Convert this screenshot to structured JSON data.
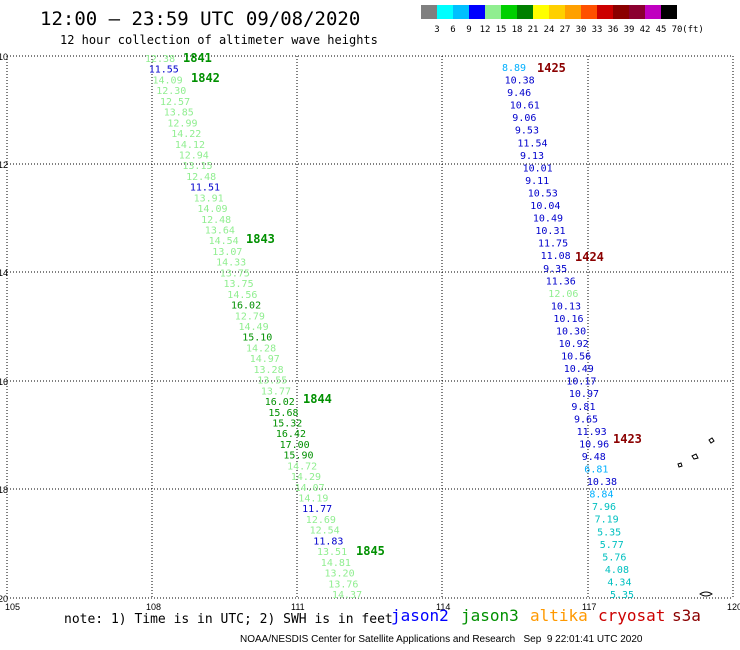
{
  "header": {
    "title": "12:00 – 23:59 UTC 09/08/2020",
    "subtitle": "12 hour collection of altimeter wave heights"
  },
  "colorbar": {
    "unit": "(ft)",
    "labels": [
      "3",
      "6",
      "9",
      "12",
      "15",
      "18",
      "21",
      "24",
      "27",
      "30",
      "33",
      "36",
      "39",
      "42",
      "45",
      "70"
    ],
    "colors": [
      "#808080",
      "#00ffff",
      "#00c0ff",
      "#0000ff",
      "#90ee90",
      "#00d000",
      "#008000",
      "#ffff00",
      "#ffd000",
      "#ffa000",
      "#ff5000",
      "#cc0000",
      "#8b0000",
      "#8b0030",
      "#c000c0",
      "#000000"
    ]
  },
  "axes": {
    "x_ticks": [
      "105",
      "108",
      "111",
      "114",
      "117",
      "120"
    ],
    "y_ticks": [
      "10",
      "12",
      "14",
      "16",
      "18",
      "20"
    ]
  },
  "passes": {
    "1841": "1841",
    "1842": "1842",
    "1843": "1843",
    "1844": "1844",
    "1845": "1845",
    "1423": "1423",
    "1424": "1424",
    "1425": "1425"
  },
  "track_left": {
    "values": [
      "12.38",
      "11.55",
      "14.09",
      "12.30",
      "12.57",
      "13.85",
      "12.99",
      "14.22",
      "14.12",
      "12.94",
      "13.15",
      "12.48",
      "11.51",
      "13.91",
      "14.09",
      "12.48",
      "13.64",
      "14.54",
      "13.07",
      "14.33",
      "13.75",
      "13.75",
      "14.56",
      "16.02",
      "12.79",
      "14.49",
      "15.10",
      "14.28",
      "14.97",
      "13.28",
      "13.55",
      "13.77",
      "16.02",
      "15.68",
      "15.32",
      "16.42",
      "17.00",
      "15.90",
      "14.72",
      "14.29",
      "14.07",
      "14.19",
      "11.77",
      "12.69",
      "12.54",
      "11.83",
      "13.51",
      "14.81",
      "13.20",
      "13.76",
      "14.37"
    ],
    "colors": [
      "#90ee90",
      "#0000cc",
      "#90ee90",
      "#90ee90",
      "#90ee90",
      "#90ee90",
      "#90ee90",
      "#90ee90",
      "#90ee90",
      "#90ee90",
      "#90ee90",
      "#90ee90",
      "#0000cc",
      "#90ee90",
      "#90ee90",
      "#90ee90",
      "#90ee90",
      "#90ee90",
      "#90ee90",
      "#90ee90",
      "#90ee90",
      "#90ee90",
      "#90ee90",
      "#009000",
      "#90ee90",
      "#90ee90",
      "#009000",
      "#90ee90",
      "#90ee90",
      "#90ee90",
      "#90ee90",
      "#90ee90",
      "#009000",
      "#009000",
      "#009000",
      "#009000",
      "#009000",
      "#009000",
      "#90ee90",
      "#90ee90",
      "#90ee90",
      "#90ee90",
      "#0000cc",
      "#90ee90",
      "#90ee90",
      "#0000cc",
      "#90ee90",
      "#90ee90",
      "#90ee90",
      "#90ee90",
      "#90ee90"
    ]
  },
  "track_right": {
    "values": [
      "8.89",
      "10.38",
      "9.46",
      "10.61",
      "9.06",
      "9.53",
      "11.54",
      "9.13",
      "10.01",
      "9.11",
      "10.53",
      "10.04",
      "10.49",
      "10.31",
      "11.75",
      "11.08",
      "9.35",
      "11.36",
      "12.06",
      "10.13",
      "10.16",
      "10.30",
      "10.92",
      "10.56",
      "10.49",
      "10.17",
      "10.97",
      "9.81",
      "9.65",
      "11.93",
      "10.96",
      "9.48",
      "6.81",
      "10.38",
      "8.84",
      "7.96",
      "7.19",
      "5.35",
      "5.77",
      "5.76",
      "4.08",
      "4.34",
      "5.35"
    ],
    "colors": [
      "#00b0ff",
      "#0000cc",
      "#0000cc",
      "#0000cc",
      "#0000cc",
      "#0000cc",
      "#0000cc",
      "#0000cc",
      "#0000cc",
      "#0000cc",
      "#0000cc",
      "#0000cc",
      "#0000cc",
      "#0000cc",
      "#0000cc",
      "#0000cc",
      "#0000cc",
      "#0000cc",
      "#90ee90",
      "#0000cc",
      "#0000cc",
      "#0000cc",
      "#0000cc",
      "#0000cc",
      "#0000cc",
      "#0000cc",
      "#0000cc",
      "#0000cc",
      "#0000cc",
      "#0000cc",
      "#0000cc",
      "#0000cc",
      "#00b0ff",
      "#0000cc",
      "#00b0ff",
      "#00c0c0",
      "#00c0c0",
      "#00c0c0",
      "#00c0c0",
      "#00c0c0",
      "#00c0c0",
      "#00c0c0",
      "#00c0c0"
    ]
  },
  "note": "note: 1) Time is in UTC; 2) SWH is in feet",
  "legend": {
    "jason2": "jason2",
    "jason3": "jason3",
    "altika": "altika",
    "cryosat": "cryosat",
    "s3a": "s3a"
  },
  "colors": {
    "jason2": "#0000ff",
    "jason3": "#009000",
    "altika": "#ff9900",
    "cryosat": "#cc0000",
    "s3a": "#8b0000",
    "grid": "#000000"
  },
  "footer": "NOAA/NESDIS Center for Satellite Applications and Research   Sep  9 22:01:41 UTC 2020"
}
